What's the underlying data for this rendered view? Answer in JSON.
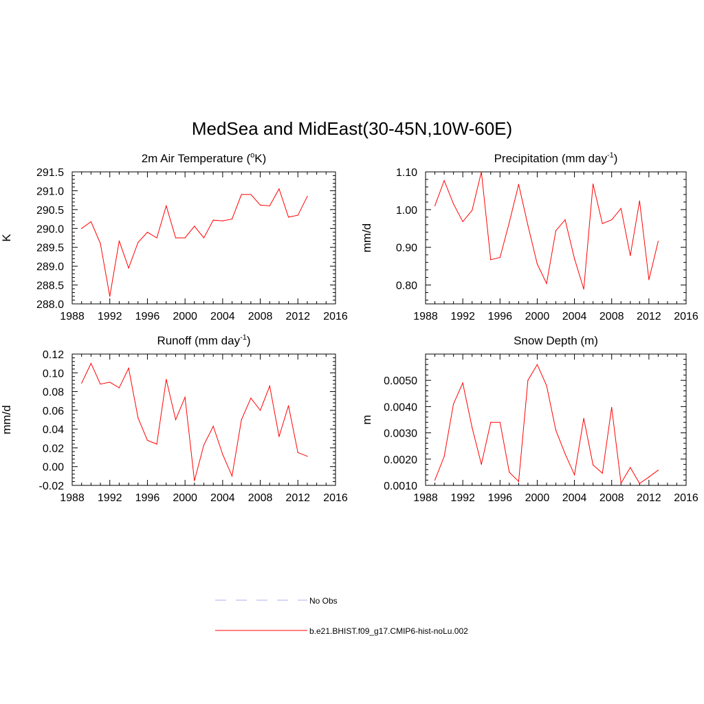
{
  "main_title": "MedSea and MidEast(30-45N,10W-60E)",
  "legend": {
    "position": "bottom-center",
    "entries": [
      {
        "label": "No Obs",
        "color": "#aab0ee",
        "dashed": true
      },
      {
        "label": "b.e21.BHIST.f09_g17.CMIP6-hist-noLu.002",
        "color": "#ff0000",
        "dashed": false
      }
    ]
  },
  "chart_data": [
    {
      "type": "line",
      "title": "2m Air Temperature (",
      "title_sup": "o",
      "title_after": "K)",
      "ylabel": "K",
      "xlim": [
        1988,
        2016
      ],
      "ylim": [
        288.0,
        291.5
      ],
      "xticks": [
        "1988",
        "1992",
        "1996",
        "2000",
        "2004",
        "2008",
        "2012",
        "2016"
      ],
      "yticks": [
        "288.0",
        "288.5",
        "289.0",
        "289.5",
        "290.0",
        "290.5",
        "291.0",
        "291.5"
      ],
      "series": [
        {
          "color": "#ff0000",
          "x": [
            1989,
            1990,
            1991,
            1992,
            1993,
            1994,
            1995,
            1996,
            1997,
            1998,
            1999,
            2000,
            2001,
            2002,
            2003,
            2004,
            2005,
            2006,
            2007,
            2008,
            2009,
            2010,
            2011,
            2012,
            2013
          ],
          "values": [
            290.0,
            290.18,
            289.6,
            288.2,
            289.67,
            288.95,
            289.63,
            289.9,
            289.75,
            290.6,
            289.75,
            289.75,
            290.06,
            289.75,
            290.22,
            290.2,
            290.25,
            290.9,
            290.9,
            290.62,
            290.6,
            291.05,
            290.3,
            290.35,
            290.85
          ]
        }
      ]
    },
    {
      "type": "line",
      "title": "Precipitation (mm day",
      "title_sup": "-1",
      "title_after": ")",
      "ylabel": "mm/d",
      "xlim": [
        1988,
        2016
      ],
      "ylim": [
        0.75,
        1.1
      ],
      "xticks": [
        "1988",
        "1992",
        "1996",
        "2000",
        "2004",
        "2008",
        "2012",
        "2016"
      ],
      "yticks": [
        "0.80",
        "0.90",
        "1.00",
        "1.10"
      ],
      "series": [
        {
          "color": "#ff0000",
          "x": [
            1989,
            1990,
            1991,
            1992,
            1993,
            1994,
            1995,
            1996,
            1997,
            1998,
            1999,
            2000,
            2001,
            2002,
            2003,
            2004,
            2005,
            2006,
            2007,
            2008,
            2009,
            2010,
            2011,
            2012,
            2013
          ],
          "values": [
            1.01,
            1.077,
            1.015,
            0.968,
            0.998,
            1.1,
            0.867,
            0.873,
            0.966,
            1.067,
            0.958,
            0.856,
            0.804,
            0.944,
            0.973,
            0.87,
            0.789,
            1.068,
            0.963,
            0.973,
            1.003,
            0.878,
            1.023,
            0.814,
            0.916
          ]
        }
      ]
    },
    {
      "type": "line",
      "title": "Runoff (mm day",
      "title_sup": "-1",
      "title_after": ")",
      "ylabel": "mm/d",
      "xlim": [
        1988,
        2016
      ],
      "ylim": [
        -0.02,
        0.12
      ],
      "xticks": [
        "1988",
        "1992",
        "1996",
        "2000",
        "2004",
        "2008",
        "2012",
        "2016"
      ],
      "yticks": [
        "-0.02",
        "0.00",
        "0.02",
        "0.04",
        "0.06",
        "0.08",
        "0.10",
        "0.12"
      ],
      "series": [
        {
          "color": "#ff0000",
          "x": [
            1989,
            1990,
            1991,
            1992,
            1993,
            1994,
            1995,
            1996,
            1997,
            1998,
            1999,
            2000,
            2001,
            2002,
            2003,
            2004,
            2005,
            2006,
            2007,
            2008,
            2009,
            2010,
            2011,
            2012,
            2013
          ],
          "values": [
            0.089,
            0.11,
            0.088,
            0.09,
            0.084,
            0.105,
            0.052,
            0.028,
            0.024,
            0.093,
            0.05,
            0.074,
            -0.015,
            0.023,
            0.043,
            0.013,
            -0.01,
            0.05,
            0.073,
            0.06,
            0.086,
            0.032,
            0.065,
            0.015,
            0.011
          ]
        }
      ]
    },
    {
      "type": "line",
      "title": "Snow Depth (m)",
      "title_sup": "",
      "title_after": "",
      "ylabel": "m",
      "xlim": [
        1988,
        2016
      ],
      "ylim": [
        0.001,
        0.006
      ],
      "xticks": [
        "1988",
        "1992",
        "1996",
        "2000",
        "2004",
        "2008",
        "2012",
        "2016"
      ],
      "yticks": [
        "0.0010",
        "0.0020",
        "0.0030",
        "0.0040",
        "0.0050"
      ],
      "series": [
        {
          "color": "#ff0000",
          "x": [
            1989,
            1990,
            1991,
            1992,
            1993,
            1994,
            1995,
            1996,
            1997,
            1998,
            1999,
            2000,
            2001,
            2002,
            2003,
            2004,
            2005,
            2006,
            2007,
            2008,
            2009,
            2010,
            2011,
            2012,
            2013
          ],
          "values": [
            0.0012,
            0.0021,
            0.0041,
            0.0049,
            0.0032,
            0.0018,
            0.0034,
            0.0034,
            0.0015,
            0.00115,
            0.005,
            0.0056,
            0.0048,
            0.0031,
            0.0022,
            0.0014,
            0.00355,
            0.00178,
            0.00146,
            0.00397,
            0.00108,
            0.00168,
            0.00107,
            0.00132,
            0.00158
          ]
        }
      ]
    }
  ]
}
